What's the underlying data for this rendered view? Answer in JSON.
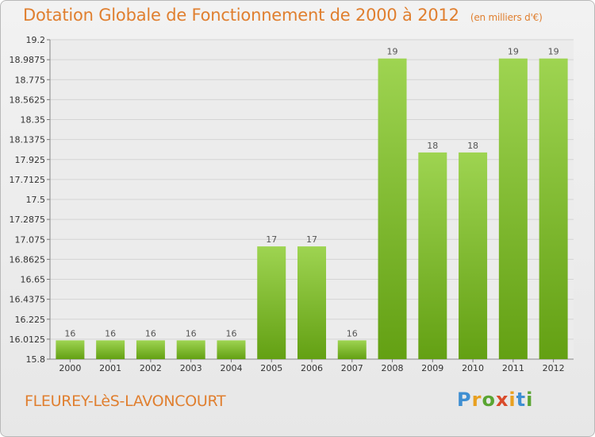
{
  "header": {
    "title": "Dotation Globale de Fonctionnement de 2000 à 2012",
    "unit": "(en milliers d'€)"
  },
  "footer": {
    "place": "FLEUREY-LèS-LAVONCOURT",
    "logo": "Proxiti"
  },
  "colors": {
    "title": "#e07f2f",
    "bar_top": "#9ed451",
    "bar_bottom": "#63a013",
    "grid": "#d4d4d4"
  },
  "chart_data": {
    "type": "bar",
    "categories": [
      "2000",
      "2001",
      "2002",
      "2003",
      "2004",
      "2005",
      "2006",
      "2007",
      "2008",
      "2009",
      "2010",
      "2011",
      "2012"
    ],
    "values": [
      16,
      16,
      16,
      16,
      16,
      17,
      17,
      16,
      19,
      18,
      18,
      19,
      19
    ],
    "data_labels": [
      "16",
      "16",
      "16",
      "16",
      "16",
      "17",
      "17",
      "16",
      "19",
      "18",
      "18",
      "19",
      "19"
    ],
    "ylim": [
      15.8,
      19.2
    ],
    "yticks": [
      "19.2",
      "18.9875",
      "18.775",
      "18.5625",
      "18.35",
      "18.1375",
      "17.925",
      "17.7125",
      "17.5",
      "17.2875",
      "17.075",
      "16.8625",
      "16.65",
      "16.4375",
      "16.225",
      "16.0125",
      "15.8"
    ],
    "grid": true,
    "legend": "none"
  }
}
